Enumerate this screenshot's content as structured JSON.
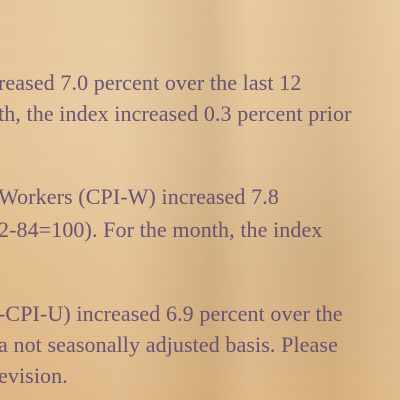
{
  "document": {
    "lines": [
      "reased 7.0 percent over the last 12",
      "th, the index increased 0.3 percent prior",
      "Workers (CPI-W) increased 7.8",
      "2-84=100). For the month, the index",
      "-CPI-U) increased 6.9 percent over the",
      "a not seasonally adjusted basis. Please",
      "evision."
    ]
  }
}
